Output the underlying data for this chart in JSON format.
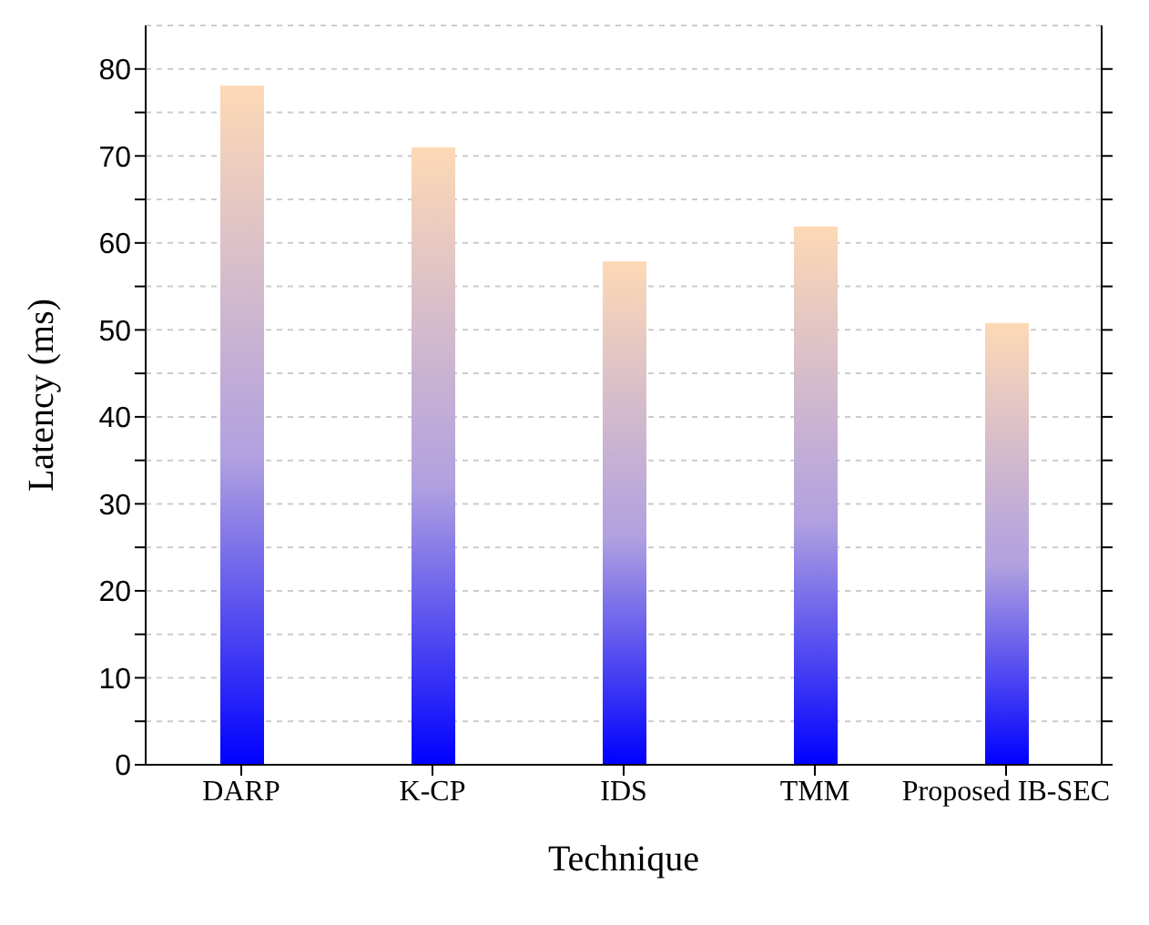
{
  "chart_data": {
    "type": "bar",
    "xlabel": "Technique",
    "ylabel": "Latency  (ms)",
    "categories": [
      "DARP",
      "K-CP",
      "IDS",
      "TMM",
      "Proposed IB-SEC"
    ],
    "values": [
      78.1,
      71.0,
      57.9,
      61.9,
      50.8
    ],
    "color": "#fdd9b5",
    "ylim": [
      0,
      85
    ],
    "yticks": [
      0,
      {
        "value": 5,
        "label": null
      },
      10,
      {
        "value": 15,
        "label": null
      },
      20,
      {
        "value": 25,
        "label": null
      },
      30,
      {
        "value": 35,
        "label": null
      },
      40,
      {
        "value": 45,
        "label": null
      },
      50,
      {
        "value": 55,
        "label": null
      },
      60,
      {
        "value": 65,
        "label": null
      },
      70,
      {
        "value": 75,
        "label": null
      },
      80
    ],
    "grid": "y"
  }
}
